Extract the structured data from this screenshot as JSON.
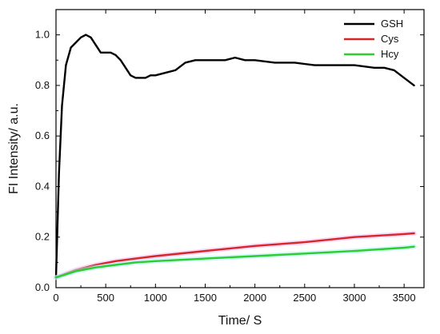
{
  "chart_data": {
    "type": "line",
    "title": "",
    "xlabel": "Time/ S",
    "ylabel": "FI Intensity/ a.u.",
    "xlim": [
      0,
      3700
    ],
    "ylim": [
      0,
      1.1
    ],
    "x_ticks": [
      0,
      500,
      1000,
      1500,
      2000,
      2500,
      3000,
      3500
    ],
    "x_tick_labels": [
      "0",
      "500",
      "1000",
      "1500",
      "2000",
      "2500",
      "3000",
      "3500"
    ],
    "y_ticks": [
      0.0,
      0.2,
      0.4,
      0.6,
      0.8,
      1.0
    ],
    "y_tick_labels": [
      "0.0",
      "0.2",
      "0.4",
      "0.6",
      "0.8",
      "1.0"
    ],
    "grid": false,
    "legend_position": "top-right",
    "series": [
      {
        "name": "GSH",
        "color": "#000000",
        "x": [
          0,
          30,
          60,
          100,
          150,
          200,
          250,
          300,
          350,
          400,
          450,
          500,
          550,
          600,
          650,
          700,
          750,
          800,
          850,
          900,
          950,
          1000,
          1100,
          1200,
          1300,
          1400,
          1500,
          1600,
          1700,
          1800,
          1900,
          2000,
          2200,
          2400,
          2600,
          2800,
          3000,
          3200,
          3300,
          3400,
          3500,
          3600
        ],
        "y": [
          0.04,
          0.45,
          0.72,
          0.88,
          0.95,
          0.97,
          0.99,
          1.0,
          0.99,
          0.96,
          0.93,
          0.93,
          0.93,
          0.92,
          0.9,
          0.87,
          0.84,
          0.83,
          0.83,
          0.83,
          0.84,
          0.84,
          0.85,
          0.86,
          0.89,
          0.9,
          0.9,
          0.9,
          0.9,
          0.91,
          0.9,
          0.9,
          0.89,
          0.89,
          0.88,
          0.88,
          0.88,
          0.87,
          0.87,
          0.86,
          0.83,
          0.8
        ]
      },
      {
        "name": "Cys",
        "color": "#d62728",
        "x": [
          0,
          200,
          400,
          600,
          800,
          1000,
          1500,
          2000,
          2500,
          3000,
          3500,
          3600
        ],
        "y": [
          0.04,
          0.07,
          0.09,
          0.105,
          0.115,
          0.125,
          0.145,
          0.165,
          0.18,
          0.2,
          0.212,
          0.215
        ]
      },
      {
        "name": "Hcy",
        "color": "#2ecc2e",
        "x": [
          0,
          200,
          400,
          600,
          800,
          1000,
          1500,
          2000,
          2500,
          3000,
          3500,
          3600
        ],
        "y": [
          0.04,
          0.065,
          0.08,
          0.09,
          0.1,
          0.105,
          0.115,
          0.125,
          0.135,
          0.145,
          0.158,
          0.162
        ]
      }
    ]
  }
}
